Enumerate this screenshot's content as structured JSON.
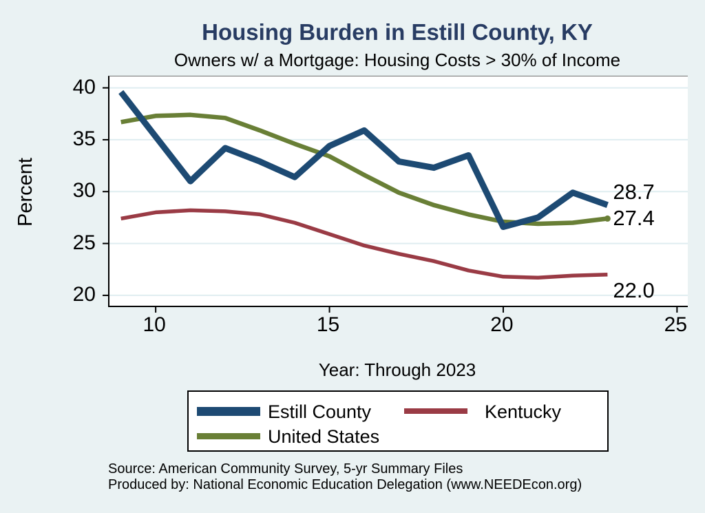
{
  "title": "Housing Burden in Estill County, KY",
  "subtitle": "Owners w/ a Mortgage: Housing Costs > 30% of Income",
  "source": {
    "line1": "Source: American Community Survey, 5-yr Summary Files",
    "line2": "Produced by: National Economic Education Delegation (www.NEEDEcon.org)"
  },
  "colors": {
    "background": "#eaf2f3",
    "plot_background": "#ffffff",
    "title_text": "#283c63",
    "gridline": "#dfedf0",
    "estill_county": "#1d4a73",
    "kentucky": "#9a3b45",
    "united_states": "#697f36"
  },
  "chart_data": {
    "type": "line",
    "title": "Housing Burden in Estill County, KY",
    "subtitle": "Owners w/ a Mortgage: Housing Costs > 30% of Income",
    "xlabel": "Year: Through 2023",
    "ylabel": "Percent",
    "x": [
      9,
      10,
      11,
      12,
      13,
      14,
      15,
      16,
      17,
      18,
      19,
      20,
      21,
      22,
      23
    ],
    "series": [
      {
        "name": "Estill County",
        "color": "#1d4a73",
        "line_width": 9,
        "values": [
          39.6,
          35.3,
          31.0,
          34.2,
          32.9,
          31.4,
          34.4,
          35.9,
          32.9,
          32.3,
          33.5,
          26.6,
          27.5,
          29.9,
          28.7
        ],
        "end_label": "28.7",
        "end_marker": false
      },
      {
        "name": "Kentucky",
        "color": "#9a3b45",
        "line_width": 5.5,
        "values": [
          27.4,
          28.0,
          28.2,
          28.1,
          27.8,
          27.0,
          25.9,
          24.8,
          24.0,
          23.3,
          22.4,
          21.8,
          21.7,
          21.9,
          22.0
        ],
        "end_label": "22.0",
        "end_marker": false
      },
      {
        "name": "United States",
        "color": "#697f36",
        "line_width": 6.5,
        "values": [
          36.7,
          37.3,
          37.4,
          37.1,
          35.9,
          34.6,
          33.4,
          31.6,
          29.9,
          28.7,
          27.8,
          27.1,
          26.9,
          27.0,
          27.4
        ],
        "end_label": "27.4",
        "end_marker": true
      }
    ],
    "x_ticks": [
      "10",
      "15",
      "20",
      "25"
    ],
    "x_tick_values": [
      10,
      15,
      20,
      25
    ],
    "y_ticks": [
      "20",
      "25",
      "30",
      "35",
      "40"
    ],
    "y_tick_values": [
      20,
      25,
      30,
      35,
      40
    ],
    "x_range": [
      8.67,
      25.31
    ],
    "y_range": [
      19.0,
      41.1
    ],
    "grid": "horizontal",
    "legend_position": "bottom"
  },
  "legend": {
    "items": [
      {
        "label": "Estill County"
      },
      {
        "label": "Kentucky"
      },
      {
        "label": "United States"
      }
    ]
  }
}
